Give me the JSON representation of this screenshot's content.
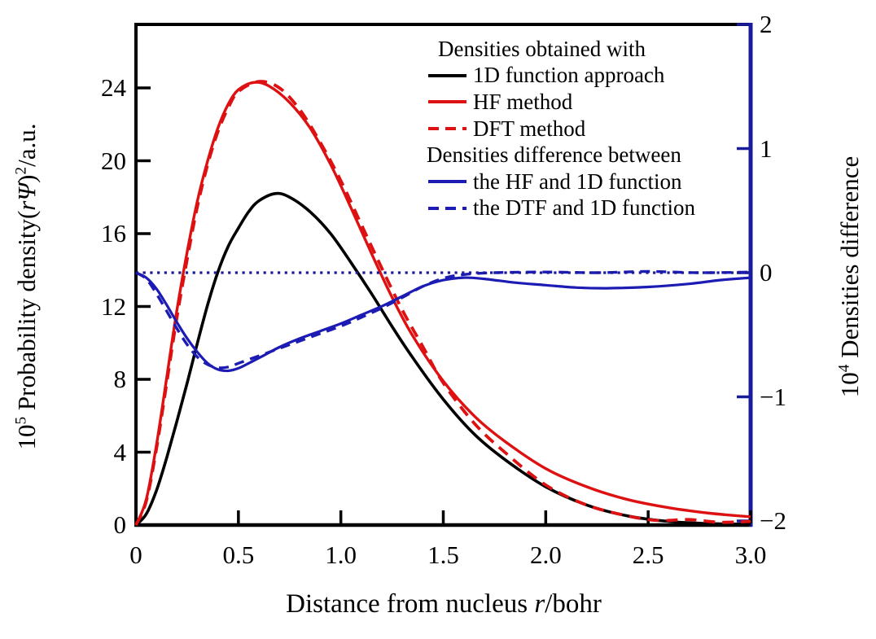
{
  "figure": {
    "background": "#ffffff"
  },
  "colors": {
    "black": "#000000",
    "red": "#dd1111",
    "blue": "#1c1cb4",
    "navy": "#1a1a9c"
  },
  "axes": {
    "x": {
      "title_segments": [
        {
          "t": "Distance from nucleus "
        },
        {
          "t": "r",
          "s": "i"
        },
        {
          "t": "/bohr"
        }
      ],
      "ticks": [
        {
          "v": 0,
          "t": "0"
        },
        {
          "v": 0.5,
          "t": "0.5"
        },
        {
          "v": 1,
          "t": "1.0"
        },
        {
          "v": 1.5,
          "t": "1.5"
        },
        {
          "v": 2,
          "t": "2.0"
        },
        {
          "v": 2.5,
          "t": "2.5"
        },
        {
          "v": 3,
          "t": "3.0"
        }
      ]
    },
    "left": {
      "title_segments": [
        {
          "t": "10"
        },
        {
          "t": "5",
          "s": "sup"
        },
        {
          "t": " Probability density("
        },
        {
          "t": "r",
          "s": "i"
        },
        {
          "t": "Ψ",
          "s": "i"
        },
        {
          "t": ")"
        },
        {
          "t": "2",
          "s": "sup"
        },
        {
          "t": "/a.u."
        }
      ],
      "ticks": [
        {
          "v": 24,
          "t": "24"
        },
        {
          "v": 20,
          "t": "20"
        },
        {
          "v": 16,
          "t": "16"
        },
        {
          "v": 12,
          "t": "12"
        },
        {
          "v": 8,
          "t": "8"
        },
        {
          "v": 4,
          "t": "4"
        },
        {
          "v": 0,
          "t": "0"
        }
      ]
    },
    "right": {
      "title_segments": [
        {
          "t": "10"
        },
        {
          "t": "4",
          "s": "sup"
        },
        {
          "t": " Densities difference"
        }
      ],
      "ticks": [
        {
          "v": 2,
          "t": "2"
        },
        {
          "v": 1,
          "t": "1"
        },
        {
          "v": 0,
          "t": "0"
        },
        {
          "v": -1,
          "t": "−1"
        },
        {
          "v": -2,
          "t": "−2"
        }
      ]
    }
  },
  "legend": {
    "rows": [
      {
        "type": "header",
        "cls": "lg-head1",
        "text": "Densities obtained with"
      },
      {
        "type": "item",
        "color": "black",
        "dash": "solid",
        "text": "1D function approach"
      },
      {
        "type": "item",
        "color": "red",
        "dash": "solid",
        "text": "HF method"
      },
      {
        "type": "item",
        "color": "red",
        "dash": "dashed",
        "text": "DFT method"
      },
      {
        "type": "header",
        "cls": "lg-head2",
        "text": "Densities difference between"
      },
      {
        "type": "item",
        "color": "blue",
        "dash": "solid",
        "text": "the HF and 1D function"
      },
      {
        "type": "item",
        "color": "blue",
        "dash": "dashed",
        "text": "the DTF and 1D function"
      }
    ]
  },
  "chart_data": {
    "type": "line",
    "xlabel": "Distance from nucleus r/bohr",
    "ylabel_left": "10^5 Probability density(rΨ)^2/a.u.",
    "ylabel_right": "10^4 Densities difference",
    "x_range": [
      0,
      3.0
    ],
    "y_left_range": [
      0,
      24
    ],
    "y_right_range": [
      -2,
      2
    ],
    "x_ticks": [
      0,
      0.5,
      1.0,
      1.5,
      2.0,
      2.5,
      3.0
    ],
    "y_left_ticks": [
      0,
      4,
      8,
      12,
      16,
      20,
      24
    ],
    "y_right_ticks": [
      -2,
      -1,
      0,
      1,
      2
    ],
    "grid": false,
    "legend_position": "upper right inside",
    "series": [
      {
        "name": "1D function approach",
        "axis": "left",
        "color": "black",
        "style": "solid",
        "width": 3.6,
        "points": [
          [
            0,
            0
          ],
          [
            0.05,
            0.6
          ],
          [
            0.1,
            1.9
          ],
          [
            0.15,
            3.7
          ],
          [
            0.2,
            5.7
          ],
          [
            0.25,
            7.8
          ],
          [
            0.3,
            10.0
          ],
          [
            0.35,
            12.1
          ],
          [
            0.4,
            13.9
          ],
          [
            0.45,
            15.3
          ],
          [
            0.5,
            16.3
          ],
          [
            0.55,
            17.2
          ],
          [
            0.6,
            17.8
          ],
          [
            0.68,
            18.2
          ],
          [
            0.75,
            18.0
          ],
          [
            0.85,
            17.2
          ],
          [
            0.95,
            16.0
          ],
          [
            1.05,
            14.4
          ],
          [
            1.15,
            12.7
          ],
          [
            1.25,
            10.9
          ],
          [
            1.35,
            9.2
          ],
          [
            1.5,
            6.9
          ],
          [
            1.65,
            5.0
          ],
          [
            1.8,
            3.6
          ],
          [
            2.0,
            2.1
          ],
          [
            2.2,
            1.1
          ],
          [
            2.4,
            0.5
          ],
          [
            2.6,
            0.2
          ],
          [
            2.8,
            0.08
          ],
          [
            3.0,
            0.05
          ]
        ]
      },
      {
        "name": "HF method",
        "axis": "left",
        "color": "red",
        "style": "solid",
        "width": 3.4,
        "points": [
          [
            0,
            0
          ],
          [
            0.05,
            1.4
          ],
          [
            0.1,
            4.4
          ],
          [
            0.15,
            8.1
          ],
          [
            0.2,
            11.8
          ],
          [
            0.25,
            15.0
          ],
          [
            0.3,
            17.8
          ],
          [
            0.35,
            20.0
          ],
          [
            0.4,
            21.8
          ],
          [
            0.45,
            23.1
          ],
          [
            0.5,
            23.9
          ],
          [
            0.575,
            24.3
          ],
          [
            0.65,
            24.1
          ],
          [
            0.75,
            23.2
          ],
          [
            0.85,
            21.8
          ],
          [
            0.95,
            19.8
          ],
          [
            1.05,
            17.4
          ],
          [
            1.15,
            14.9
          ],
          [
            1.25,
            12.5
          ],
          [
            1.35,
            10.4
          ],
          [
            1.5,
            7.9
          ],
          [
            1.65,
            6.0
          ],
          [
            1.8,
            4.6
          ],
          [
            2.0,
            3.1
          ],
          [
            2.2,
            2.1
          ],
          [
            2.4,
            1.4
          ],
          [
            2.6,
            0.95
          ],
          [
            2.8,
            0.65
          ],
          [
            3.0,
            0.45
          ]
        ]
      },
      {
        "name": "DFT method",
        "axis": "left",
        "color": "red",
        "style": "dashed",
        "width": 3.8,
        "points": [
          [
            0,
            0
          ],
          [
            0.05,
            1.3
          ],
          [
            0.1,
            4.2
          ],
          [
            0.15,
            7.8
          ],
          [
            0.2,
            11.4
          ],
          [
            0.25,
            14.6
          ],
          [
            0.3,
            17.5
          ],
          [
            0.35,
            19.8
          ],
          [
            0.4,
            21.6
          ],
          [
            0.45,
            22.9
          ],
          [
            0.5,
            23.8
          ],
          [
            0.6,
            24.35
          ],
          [
            0.7,
            24.0
          ],
          [
            0.8,
            22.8
          ],
          [
            0.9,
            21.0
          ],
          [
            1.0,
            18.9
          ],
          [
            1.1,
            16.5
          ],
          [
            1.2,
            14.1
          ],
          [
            1.3,
            11.8
          ],
          [
            1.4,
            9.8
          ],
          [
            1.5,
            7.8
          ],
          [
            1.65,
            5.6
          ],
          [
            1.8,
            4.0
          ],
          [
            2.0,
            2.2
          ],
          [
            2.2,
            1.1
          ],
          [
            2.4,
            0.5
          ],
          [
            2.55,
            0.25
          ],
          [
            2.7,
            0.3
          ],
          [
            2.85,
            0.15
          ],
          [
            3.0,
            0.2
          ]
        ]
      },
      {
        "name": "the HF and 1D function",
        "axis": "right",
        "color": "blue",
        "style": "solid",
        "width": 3.2,
        "points": [
          [
            0,
            0
          ],
          [
            0.05,
            -0.04
          ],
          [
            0.1,
            -0.13
          ],
          [
            0.15,
            -0.26
          ],
          [
            0.2,
            -0.4
          ],
          [
            0.25,
            -0.53
          ],
          [
            0.3,
            -0.64
          ],
          [
            0.35,
            -0.73
          ],
          [
            0.4,
            -0.78
          ],
          [
            0.45,
            -0.79
          ],
          [
            0.5,
            -0.77
          ],
          [
            0.55,
            -0.73
          ],
          [
            0.62,
            -0.67
          ],
          [
            0.7,
            -0.6
          ],
          [
            0.8,
            -0.53
          ],
          [
            0.9,
            -0.47
          ],
          [
            1.0,
            -0.41
          ],
          [
            1.1,
            -0.34
          ],
          [
            1.2,
            -0.27
          ],
          [
            1.3,
            -0.19
          ],
          [
            1.4,
            -0.11
          ],
          [
            1.5,
            -0.06
          ],
          [
            1.6,
            -0.04
          ],
          [
            1.7,
            -0.05
          ],
          [
            1.85,
            -0.08
          ],
          [
            2.0,
            -0.1
          ],
          [
            2.15,
            -0.12
          ],
          [
            2.3,
            -0.125
          ],
          [
            2.5,
            -0.115
          ],
          [
            2.7,
            -0.09
          ],
          [
            2.85,
            -0.06
          ],
          [
            3.0,
            -0.04
          ]
        ]
      },
      {
        "name": "the DTF and 1D function",
        "axis": "right",
        "color": "blue",
        "style": "dashed",
        "width": 3.4,
        "points": [
          [
            0,
            0
          ],
          [
            0.05,
            -0.05
          ],
          [
            0.1,
            -0.17
          ],
          [
            0.15,
            -0.31
          ],
          [
            0.2,
            -0.45
          ],
          [
            0.25,
            -0.58
          ],
          [
            0.3,
            -0.68
          ],
          [
            0.35,
            -0.74
          ],
          [
            0.4,
            -0.765
          ],
          [
            0.45,
            -0.76
          ],
          [
            0.5,
            -0.73
          ],
          [
            0.6,
            -0.67
          ],
          [
            0.7,
            -0.61
          ],
          [
            0.8,
            -0.55
          ],
          [
            0.9,
            -0.49
          ],
          [
            1.0,
            -0.43
          ],
          [
            1.1,
            -0.36
          ],
          [
            1.2,
            -0.285
          ],
          [
            1.3,
            -0.2
          ],
          [
            1.4,
            -0.11
          ],
          [
            1.5,
            -0.045
          ],
          [
            1.6,
            -0.015
          ],
          [
            1.75,
            0.0
          ],
          [
            2.0,
            0.005
          ],
          [
            2.25,
            0.0
          ],
          [
            2.5,
            0.01
          ],
          [
            2.75,
            0.0
          ],
          [
            3.0,
            0.005
          ]
        ]
      },
      {
        "name": "zero reference",
        "axis": "right",
        "color": "navy",
        "style": "dotted",
        "width": 3.2,
        "points": [
          [
            0,
            0
          ],
          [
            0.25,
            0
          ],
          [
            0.5,
            0
          ],
          [
            0.75,
            0
          ],
          [
            1.0,
            0
          ],
          [
            1.25,
            0
          ],
          [
            1.5,
            0
          ],
          [
            1.75,
            0
          ],
          [
            2.0,
            0
          ],
          [
            2.25,
            0
          ],
          [
            2.5,
            0
          ],
          [
            2.75,
            0
          ],
          [
            3.0,
            0
          ]
        ]
      }
    ]
  }
}
